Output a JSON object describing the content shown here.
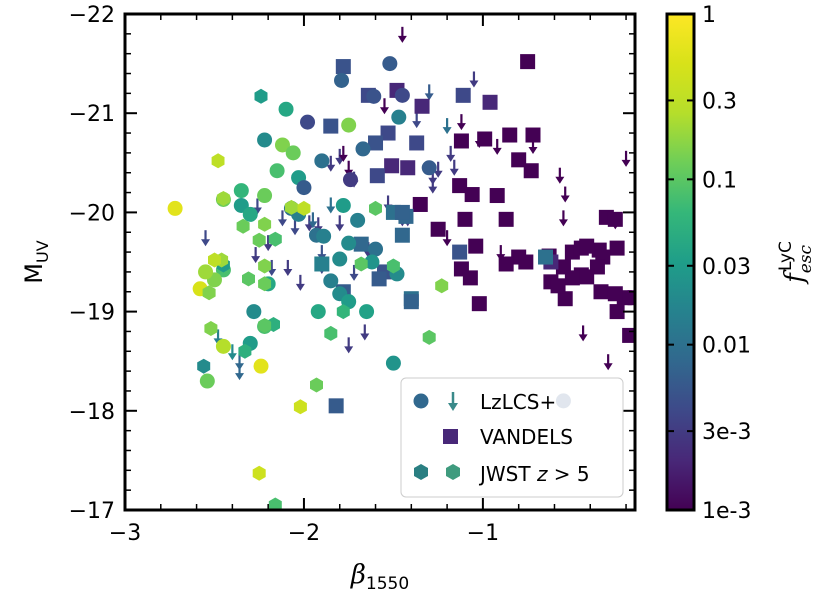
{
  "chart_data": {
    "type": "scatter",
    "xlabel": "β1550",
    "ylabel": "MUV",
    "colorbar_label": "f_esc^LyC",
    "xlim": [
      -3.0,
      -0.15
    ],
    "ylim": [
      -17,
      -22
    ],
    "x_ticks": [
      "−3",
      "−2",
      "−1"
    ],
    "y_ticks": [
      "−17",
      "−18",
      "−19",
      "−20",
      "−21",
      "−22"
    ],
    "colorbar_ticks": [
      "1e-3",
      "3e-3",
      "0.01",
      "0.03",
      "0.1",
      "0.3",
      "1"
    ],
    "colorscale": "viridis",
    "colorscale_log": true,
    "clim": [
      0.001,
      1
    ],
    "legend": {
      "placement": "lower-right",
      "entries": [
        {
          "label": "LzLCS+",
          "marker": "circle+arrow"
        },
        {
          "label": "VANDELS",
          "marker": "square"
        },
        {
          "label": "JWST z > 5",
          "marker": "hexagon"
        }
      ]
    },
    "series": [
      {
        "name": "LzLCS+",
        "marker": "circle",
        "points": [
          [
            -1.52,
            -21.5,
            0.006
          ],
          [
            -1.79,
            -21.33,
            0.007
          ],
          [
            -1.61,
            -21.17,
            0.005
          ],
          [
            -1.45,
            -21.18,
            0.004
          ],
          [
            -2.1,
            -21.04,
            0.04
          ],
          [
            -1.98,
            -20.91,
            0.004
          ],
          [
            -1.47,
            -20.96,
            0.015
          ],
          [
            -2.22,
            -20.73,
            0.02
          ],
          [
            -2.12,
            -20.68,
            0.15
          ],
          [
            -1.67,
            -20.64,
            0.008
          ],
          [
            -1.3,
            -20.45,
            0.006
          ],
          [
            -1.9,
            -20.52,
            0.01
          ],
          [
            -2.03,
            -20.35,
            0.03
          ],
          [
            -2.0,
            -20.25,
            0.006
          ],
          [
            -2.45,
            -20.13,
            0.12
          ],
          [
            -1.74,
            -20.33,
            0.003
          ],
          [
            -1.78,
            -20.07,
            0.03
          ],
          [
            -2.07,
            -20.04,
            0.01
          ],
          [
            -2.03,
            -19.98,
            0.015
          ],
          [
            -1.7,
            -19.92,
            0.015
          ],
          [
            -2.35,
            -20.07,
            0.03
          ],
          [
            -2.3,
            -19.98,
            0.04
          ],
          [
            -1.93,
            -19.77,
            0.01
          ],
          [
            -1.89,
            -19.76,
            0.015
          ],
          [
            -1.75,
            -19.69,
            0.02
          ],
          [
            -1.6,
            -19.63,
            0.01
          ],
          [
            -2.45,
            -19.42,
            0.08
          ],
          [
            -1.8,
            -19.53,
            0.02
          ],
          [
            -1.62,
            -19.5,
            0.025
          ],
          [
            -1.48,
            -19.38,
            0.02
          ],
          [
            -1.85,
            -19.31,
            0.015
          ],
          [
            -2.5,
            -19.32,
            0.15
          ],
          [
            -2.2,
            -19.28,
            0.04
          ],
          [
            -1.8,
            -19.18,
            0.02
          ],
          [
            -1.75,
            -19.1,
            0.03
          ],
          [
            -2.28,
            -19.0,
            0.02
          ],
          [
            -1.92,
            -19.0,
            0.04
          ],
          [
            -1.65,
            -19.0,
            0.035
          ],
          [
            -2.3,
            -18.68,
            0.03
          ],
          [
            -1.5,
            -18.48,
            0.025
          ],
          [
            -2.22,
            -18.85,
            0.08
          ],
          [
            -2.45,
            -18.65,
            0.25
          ],
          [
            -2.72,
            -20.04,
            0.6
          ],
          [
            -2.58,
            -19.23,
            0.5
          ],
          [
            -2.54,
            -18.3,
            0.12
          ],
          [
            -2.55,
            -19.4,
            0.2
          ],
          [
            -2.24,
            -18.45,
            0.6
          ],
          [
            -2.22,
            -20.17,
            0.12
          ],
          [
            -2.35,
            -20.22,
            0.06
          ],
          [
            -2.15,
            -20.42,
            0.08
          ],
          [
            -1.75,
            -20.88,
            0.15
          ],
          [
            -2.06,
            -20.6,
            0.12
          ],
          [
            -0.55,
            -18.1,
            0.006
          ]
        ]
      },
      {
        "name": "LzLCS+ upper limits",
        "marker": "down-arrow",
        "points": [
          [
            -1.8,
            -20.57,
            0.003
          ],
          [
            -1.72,
            -20.34,
            0.003
          ],
          [
            -1.8,
            -19.9,
            0.003
          ],
          [
            -1.64,
            -19.63,
            0.003
          ],
          [
            -1.28,
            -20.37,
            0.003
          ],
          [
            -1.53,
            -20.1,
            0.003
          ],
          [
            -1.45,
            -19.95,
            0.003
          ],
          [
            -2.26,
            -20.07,
            0.004
          ],
          [
            -1.97,
            -19.9,
            0.003
          ],
          [
            -2.02,
            -19.3,
            0.003
          ],
          [
            -2.05,
            -19.86,
            0.004
          ],
          [
            -2.12,
            -19.95,
            0.004
          ],
          [
            -1.92,
            -19.88,
            0.003
          ],
          [
            -2.55,
            -19.75,
            0.004
          ],
          [
            -2.27,
            -19.58,
            0.003
          ],
          [
            -2.18,
            -19.45,
            0.004
          ],
          [
            -2.09,
            -19.45,
            0.003
          ],
          [
            -1.9,
            -19.47,
            0.004
          ],
          [
            -1.72,
            -19.4,
            0.004
          ],
          [
            -1.56,
            -19.36,
            0.003
          ],
          [
            -2.48,
            -18.75,
            0.015
          ],
          [
            -2.4,
            -18.6,
            0.02
          ],
          [
            -2.36,
            -18.5,
            0.008
          ],
          [
            -2.36,
            -18.4,
            0.008
          ],
          [
            -1.75,
            -18.67,
            0.003
          ],
          [
            -1.66,
            -18.8,
            0.003
          ],
          [
            -1.85,
            -20.08,
            0.01
          ],
          [
            -1.95,
            -19.93,
            0.008
          ],
          [
            -1.9,
            -19.6,
            0.005
          ],
          [
            -1.3,
            -21.22,
            0.006
          ],
          [
            -1.2,
            -20.88,
            0.01
          ],
          [
            -1.37,
            -20.94,
            0.004
          ],
          [
            -2.2,
            -19.7,
            0.003
          ],
          [
            -1.25,
            -20.44,
            0.003
          ],
          [
            -1.05,
            -21.35,
            0.003
          ],
          [
            -1.85,
            -20.5,
            0.003
          ],
          [
            -1.42,
            -19.95,
            0.003
          ],
          [
            -1.28,
            -20.28,
            0.003
          ],
          [
            -1.16,
            -20.46,
            0.003
          ],
          [
            -1.18,
            -20.6,
            0.003
          ],
          [
            -1.12,
            -20.92,
            0.001
          ],
          [
            -1.02,
            -20.74,
            0.001
          ],
          [
            -0.92,
            -20.67,
            0.001
          ],
          [
            -0.57,
            -20.38,
            0.001
          ],
          [
            -0.72,
            -20.68,
            0.001
          ],
          [
            -0.54,
            -20.19,
            0.001
          ],
          [
            -0.55,
            -19.95,
            0.001
          ],
          [
            -0.44,
            -18.79,
            0.001
          ],
          [
            -0.26,
            -19.92,
            0.001
          ],
          [
            -1.2,
            -19.75,
            0.001
          ],
          [
            -0.9,
            -19.6,
            0.001
          ],
          [
            -0.3,
            -18.5,
            0.001
          ],
          [
            -0.2,
            -20.55,
            0.001
          ],
          [
            -1.45,
            -21.2,
            0.001
          ],
          [
            -1.55,
            -21.08,
            0.001
          ],
          [
            -1.45,
            -21.8,
            0.001
          ],
          [
            -1.78,
            -20.6,
            0.001
          ],
          [
            -1.75,
            -20.45,
            0.001
          ]
        ]
      },
      {
        "name": "VANDELS",
        "marker": "square",
        "points": [
          [
            -1.48,
            -21.23,
            0.002
          ],
          [
            -1.34,
            -21.07,
            0.002
          ],
          [
            -1.11,
            -21.18,
            0.004
          ],
          [
            -0.96,
            -21.11,
            0.002
          ],
          [
            -0.75,
            -21.52,
            0.001
          ],
          [
            -1.12,
            -20.72,
            0.001
          ],
          [
            -0.99,
            -20.74,
            0.001
          ],
          [
            -0.85,
            -20.78,
            0.001
          ],
          [
            -0.72,
            -20.78,
            0.001
          ],
          [
            -1.53,
            -20.8,
            0.004
          ],
          [
            -1.37,
            -20.7,
            0.004
          ],
          [
            -1.6,
            -20.7,
            0.005
          ],
          [
            -1.42,
            -20.45,
            0.002
          ],
          [
            -1.51,
            -20.47,
            0.002
          ],
          [
            -1.59,
            -20.37,
            0.004
          ],
          [
            -0.8,
            -20.53,
            0.001
          ],
          [
            -0.73,
            -20.42,
            0.001
          ],
          [
            -1.13,
            -20.27,
            0.001
          ],
          [
            -0.92,
            -20.17,
            0.001
          ],
          [
            -1.85,
            -20.87,
            0.005
          ],
          [
            -1.78,
            -21.47,
            0.005
          ],
          [
            -1.64,
            -21.18,
            0.004
          ],
          [
            -1.35,
            -20.08,
            0.001
          ],
          [
            -1.06,
            -20.18,
            0.001
          ],
          [
            -0.87,
            -19.93,
            0.001
          ],
          [
            -0.31,
            -19.95,
            0.001
          ],
          [
            -0.26,
            -19.93,
            0.001
          ],
          [
            -1.1,
            -19.93,
            0.001
          ],
          [
            -1.25,
            -19.83,
            0.001
          ],
          [
            -1.43,
            -19.96,
            0.008
          ],
          [
            -1.45,
            -19.77,
            0.008
          ],
          [
            -1.04,
            -19.66,
            0.001
          ],
          [
            -0.55,
            -19.45,
            0.001
          ],
          [
            -0.5,
            -19.6,
            0.001
          ],
          [
            -0.45,
            -19.64,
            0.001
          ],
          [
            -0.35,
            -19.62,
            0.001
          ],
          [
            -0.25,
            -19.64,
            0.001
          ],
          [
            -0.42,
            -19.66,
            0.001
          ],
          [
            -0.33,
            -19.55,
            0.001
          ],
          [
            -0.63,
            -19.56,
            0.001
          ],
          [
            -0.8,
            -19.55,
            0.001
          ],
          [
            -0.87,
            -19.48,
            0.001
          ],
          [
            -0.76,
            -19.5,
            0.001
          ],
          [
            -0.36,
            -19.45,
            0.001
          ],
          [
            -0.62,
            -19.5,
            0.002
          ],
          [
            -0.45,
            -19.37,
            0.001
          ],
          [
            -1.12,
            -19.43,
            0.001
          ],
          [
            -1.07,
            -19.34,
            0.001
          ],
          [
            -0.62,
            -19.3,
            0.001
          ],
          [
            -0.42,
            -19.35,
            0.001
          ],
          [
            -0.5,
            -19.34,
            0.001
          ],
          [
            -0.34,
            -19.2,
            0.001
          ],
          [
            -0.21,
            -19.14,
            0.001
          ],
          [
            -0.15,
            -19.14,
            0.001
          ],
          [
            -0.26,
            -19.18,
            0.001
          ],
          [
            -0.25,
            -19.0,
            0.001
          ],
          [
            -0.54,
            -19.13,
            0.001
          ],
          [
            -0.58,
            -19.26,
            0.001
          ],
          [
            -0.18,
            -18.76,
            0.001
          ],
          [
            -1.02,
            -19.08,
            0.001
          ],
          [
            -1.9,
            -19.48,
            0.015
          ],
          [
            -1.68,
            -19.68,
            0.008
          ],
          [
            -1.4,
            -19.13,
            0.01
          ],
          [
            -1.4,
            -19.1,
            0.007
          ],
          [
            -1.55,
            -19.4,
            0.005
          ],
          [
            -1.58,
            -19.33,
            0.006
          ],
          [
            -1.78,
            -19.2,
            0.006
          ],
          [
            -1.82,
            -18.05,
            0.006
          ],
          [
            -1.5,
            -20.0,
            0.01
          ],
          [
            -1.45,
            -20.0,
            0.007
          ],
          [
            -1.13,
            -19.6,
            0.005
          ],
          [
            -0.65,
            -19.55,
            0.01
          ]
        ]
      },
      {
        "name": "JWST z > 5",
        "marker": "hexagon",
        "points": [
          [
            -2.24,
            -21.17,
            0.03
          ],
          [
            -2.48,
            -20.52,
            0.3
          ],
          [
            -2.45,
            -20.14,
            0.2
          ],
          [
            -2.07,
            -20.05,
            0.2
          ],
          [
            -2.0,
            -20.04,
            0.3
          ],
          [
            -2.25,
            -19.72,
            0.12
          ],
          [
            -2.45,
            -19.47,
            0.03
          ],
          [
            -2.46,
            -19.52,
            0.2
          ],
          [
            -2.5,
            -19.52,
            0.3
          ],
          [
            -2.22,
            -19.46,
            0.15
          ],
          [
            -2.16,
            -19.73,
            0.08
          ],
          [
            -2.22,
            -19.88,
            0.15
          ],
          [
            -2.34,
            -19.86,
            0.12
          ],
          [
            -2.31,
            -19.33,
            0.1
          ],
          [
            -2.53,
            -19.19,
            0.15
          ],
          [
            -2.52,
            -18.83,
            0.15
          ],
          [
            -2.56,
            -18.45,
            0.02
          ],
          [
            -1.85,
            -18.78,
            0.08
          ],
          [
            -2.17,
            -18.87,
            0.05
          ],
          [
            -2.22,
            -19.28,
            0.12
          ],
          [
            -2.22,
            -18.86,
            0.1
          ],
          [
            -1.78,
            -19.0,
            0.06
          ],
          [
            -1.93,
            -18.26,
            0.12
          ],
          [
            -2.02,
            -18.04,
            0.4
          ],
          [
            -2.25,
            -17.37,
            0.4
          ],
          [
            -2.16,
            -17.05,
            0.08
          ],
          [
            -1.68,
            -19.48,
            0.1
          ],
          [
            -2.33,
            -18.6,
            0.05
          ],
          [
            -1.3,
            -18.74,
            0.1
          ],
          [
            -1.23,
            -19.26,
            0.15
          ],
          [
            -1.5,
            -19.46,
            0.08
          ],
          [
            -1.6,
            -20.04,
            0.1
          ]
        ]
      }
    ]
  }
}
